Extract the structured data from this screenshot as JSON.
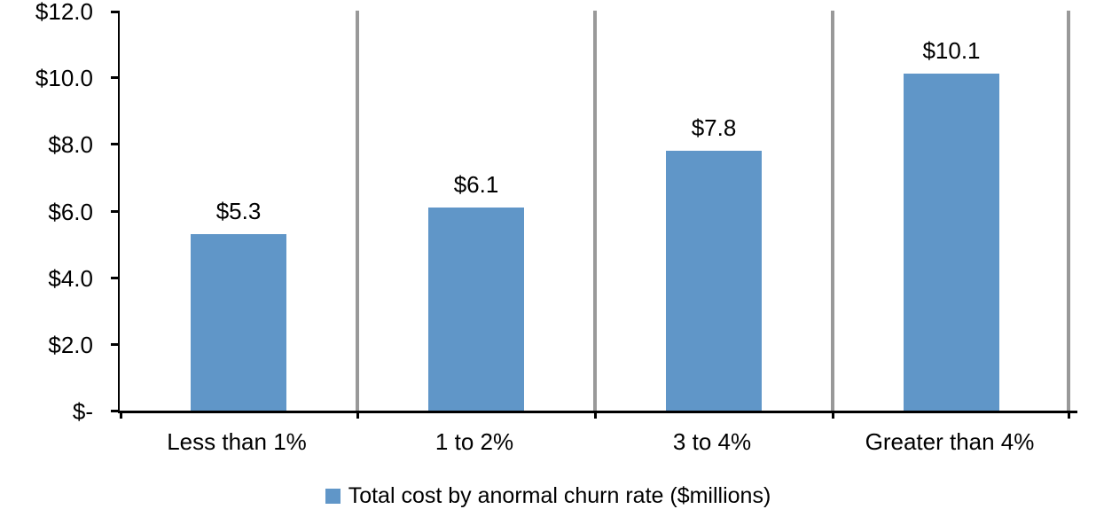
{
  "chart_data": {
    "type": "bar",
    "categories": [
      "Less than 1%",
      "1 to 2%",
      "3 to 4%",
      "Greater than 4%"
    ],
    "values": [
      5.3,
      6.1,
      7.8,
      10.1
    ],
    "data_labels": [
      "$5.3",
      "$6.1",
      "$7.8",
      "$10.1"
    ],
    "series_name": "Total cost by anormal churn rate ($millions)",
    "y_ticks": [
      {
        "label": "$12.0",
        "value": 12
      },
      {
        "label": "$10.0",
        "value": 10
      },
      {
        "label": "$8.0",
        "value": 8
      },
      {
        "label": "$6.0",
        "value": 6
      },
      {
        "label": "$4.0",
        "value": 4
      },
      {
        "label": "$2.0",
        "value": 2
      },
      {
        "label": "$-",
        "value": 0
      }
    ],
    "ylim": [
      0,
      12
    ],
    "xlabel": "",
    "ylabel": "",
    "title": "",
    "grid": false,
    "legend_position": "bottom",
    "bar_color": "#6096C8",
    "divider_color": "#999999",
    "axis_color": "#000000",
    "text_color": "#000000",
    "background_color": "#ffffff"
  }
}
